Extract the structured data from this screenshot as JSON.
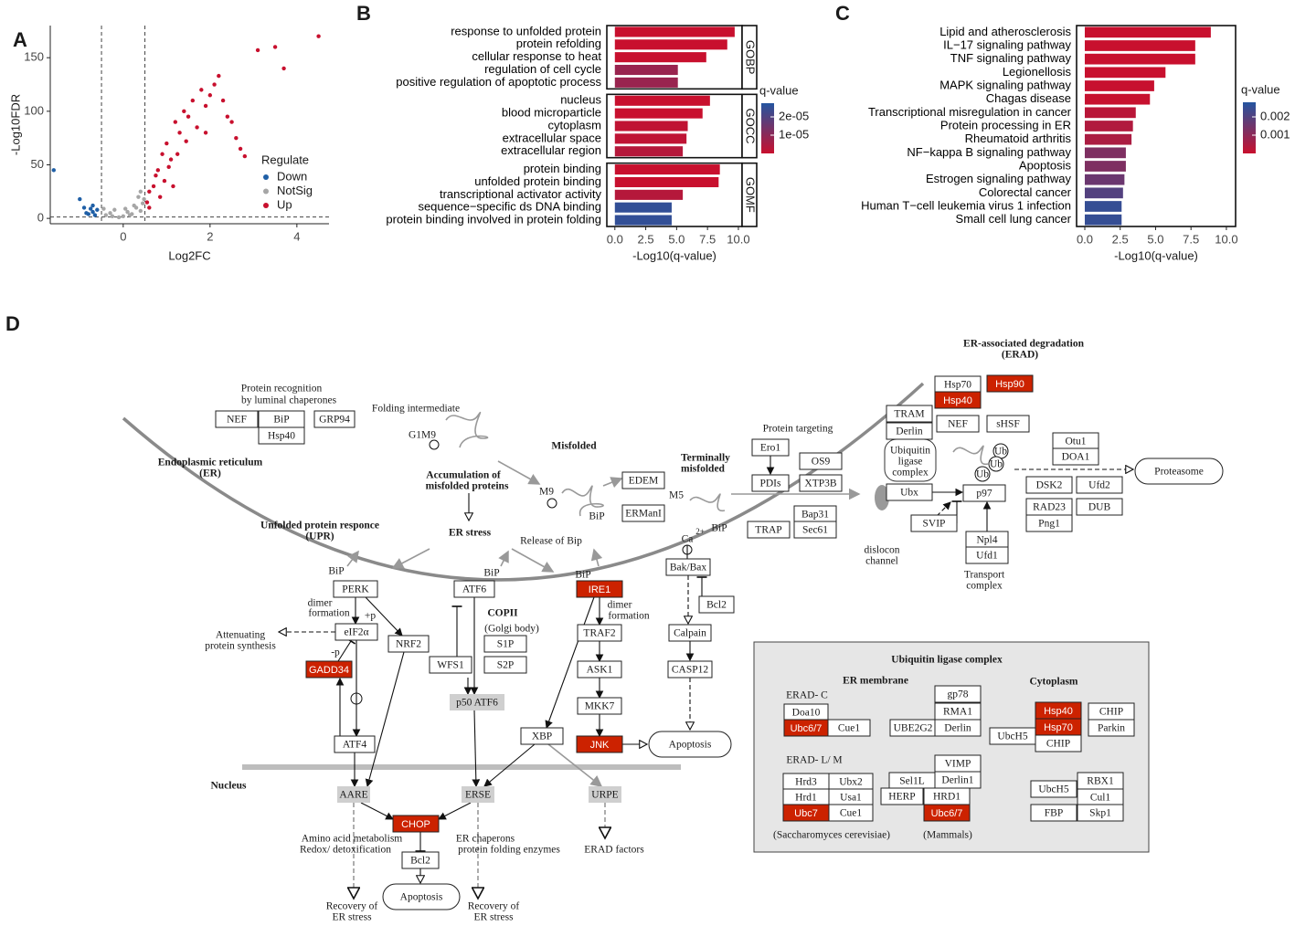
{
  "panel_labels": [
    "A",
    "B",
    "C",
    "D"
  ],
  "chart_data": [
    {
      "type": "scatter",
      "xlabel": "Log2FC",
      "ylabel": "-Log10FDR",
      "legend_title": "Regulate",
      "xlim": [
        -1.68,
        4.74
      ],
      "ylim": [
        -5,
        180
      ],
      "xticks": [
        0,
        2,
        4
      ],
      "yticks": [
        0,
        50,
        100,
        150
      ],
      "vlines": [
        -0.5,
        0.5
      ],
      "hline": 1.3,
      "series": [
        {
          "name": "Down",
          "color": "#1f5fa6",
          "x": [
            -1.6,
            -0.7,
            -0.75,
            -0.8,
            -0.65,
            -0.9,
            -1.0,
            -0.6,
            -0.85,
            -0.7
          ],
          "values": [
            45,
            6,
            9,
            4,
            3,
            10,
            18,
            8,
            5,
            12
          ]
        },
        {
          "name": "NotSig",
          "color": "#a6a6a6",
          "x": [
            -0.4,
            -0.3,
            -0.2,
            0,
            0.1,
            0.2,
            0.3,
            0.4,
            -0.1,
            0.45,
            0.35,
            0.25,
            -0.45,
            0.15,
            0.05,
            -0.25,
            0.4,
            0.48
          ],
          "values": [
            3,
            5,
            8,
            2,
            6,
            4,
            10,
            7,
            1,
            14,
            20,
            12,
            9,
            3,
            9,
            2,
            25,
            18
          ]
        },
        {
          "name": "Up",
          "color": "#c8102e",
          "x": [
            0.6,
            0.7,
            0.8,
            0.9,
            1.0,
            1.1,
            1.2,
            1.3,
            1.4,
            1.5,
            1.6,
            1.7,
            1.8,
            1.9,
            2.0,
            2.1,
            2.2,
            2.3,
            2.5,
            2.6,
            2.7,
            2.8,
            3.1,
            3.5,
            3.7,
            4.5,
            0.6,
            0.75,
            0.95,
            1.05,
            1.25,
            1.45,
            0.55,
            0.85,
            1.15,
            2.4,
            1.9
          ],
          "values": [
            10,
            30,
            45,
            60,
            70,
            55,
            90,
            80,
            100,
            95,
            110,
            85,
            120,
            105,
            115,
            125,
            133,
            110,
            90,
            75,
            65,
            58,
            157,
            160,
            140,
            170,
            25,
            40,
            35,
            48,
            60,
            72,
            15,
            20,
            30,
            95,
            80
          ]
        }
      ]
    },
    {
      "type": "bar",
      "xlabel": "-Log10(q-value)",
      "xlim": [
        -0.65,
        10.3
      ],
      "xticks": [
        {
          "value": 0,
          "label": "0.0"
        },
        2.5,
        {
          "value": 5,
          "label": "5.0"
        },
        7.5,
        {
          "value": 10,
          "label": "10.0"
        }
      ],
      "highlight_color": "#c8102e",
      "colorbar": {
        "title": "q-value",
        "lim": [
          0,
          2.75e-05
        ],
        "colors": [
          "#c8102e",
          "#2455a0"
        ],
        "ticks": [
          {
            "value": 2e-05,
            "label": "2e-05"
          },
          {
            "value": 1e-05,
            "label": "1e-05"
          }
        ]
      },
      "facets": [
        {
          "name": "GOBP",
          "categories": [
            "response to unfolded protein",
            "protein refolding",
            "cellular response to heat",
            "regulation of cell cycle",
            "positive regulation of apoptotic process"
          ],
          "values": [
            9.7,
            9.1,
            7.4,
            5.1,
            5.1
          ],
          "highlighted": [
            0,
            2
          ]
        },
        {
          "name": "GOCC",
          "categories": [
            "nucleus",
            "blood microparticle",
            "cytoplasm",
            "extracellular space",
            "extracellular region"
          ],
          "values": [
            7.7,
            7.1,
            5.9,
            5.8,
            5.5
          ],
          "highlighted": []
        },
        {
          "name": "GOMF",
          "categories": [
            "protein binding",
            "unfolded protein binding",
            "transcriptional activator activity",
            "sequence−specific ds DNA binding",
            "protein binding involved in protein folding"
          ],
          "values": [
            8.5,
            8.4,
            5.5,
            4.6,
            4.6
          ],
          "highlighted": [
            1,
            4
          ]
        }
      ]
    },
    {
      "type": "bar",
      "xlabel": "-Log10(q-value)",
      "xlim": [
        -0.58,
        10.65
      ],
      "xticks": [
        {
          "value": 0,
          "label": "0.0"
        },
        2.5,
        {
          "value": 5,
          "label": "5.0"
        },
        7.5,
        {
          "value": 10,
          "label": "10.0"
        }
      ],
      "highlight_color": "#c8102e",
      "colorbar": {
        "title": "q-value",
        "lim": [
          0,
          0.0028
        ],
        "colors": [
          "#c8102e",
          "#2455a0"
        ],
        "ticks": [
          0.002,
          0.001
        ]
      },
      "categories": [
        "Lipid and atherosclerosis",
        "IL−17 signaling pathway",
        "TNF signaling pathway",
        "Legionellosis",
        "MAPK signaling pathway",
        "Chagas disease",
        "Transcriptional misregulation in cancer",
        "Protein processing in ER",
        "Rheumatoid arthritis",
        "NF−kappa B signaling pathway",
        "Apoptosis",
        "Estrogen signaling pathway",
        "Colorectal cancer",
        "Human T−cell leukemia virus 1 infection",
        "Small cell lung cancer"
      ],
      "values": [
        8.9,
        7.8,
        7.8,
        5.7,
        4.9,
        4.6,
        3.6,
        3.4,
        3.3,
        2.9,
        2.9,
        2.8,
        2.7,
        2.6,
        2.6
      ],
      "highlighted": [
        4,
        7,
        9
      ]
    }
  ],
  "diagram": {
    "red": "#cc2200",
    "shade": "#cfcfcf",
    "highlighted": [
      45,
      56,
      66,
      73,
      88,
      89,
      122,
      128,
      129,
      141,
      146
    ],
    "shaded": [
      62,
      70,
      71,
      72
    ],
    "nodes": [
      "Protein recognition",
      "by luminal chaperones",
      "NEF",
      "BiP",
      "GRP94",
      "Hsp40",
      "Folding intermediate",
      "G1M9",
      "Endoplasmic reticulum",
      "(ER)",
      "Misfolded",
      "Accumulation of",
      "misfolded proteins",
      "ER stress",
      "M9",
      "EDEM",
      "ERManI",
      "BiP",
      "M5",
      "BiP",
      "Terminally",
      "misfolded",
      "Protein targeting",
      "Ero1",
      "PDIs",
      "OS9",
      "XTP3B",
      "Bap31",
      "TRAP",
      "Sec61",
      "Ca",
      "2+",
      "Bak/Bax",
      "Bcl2",
      "Calpain",
      "CASP12",
      "Apoptosis",
      "Unfolded protein responce",
      "(UPR)",
      "Release of Bip",
      "BiP",
      "BiP",
      "BiP",
      "PERK",
      "ATF6",
      "IRE1",
      "dimer",
      "formation",
      "dimer",
      "formation",
      "+p",
      "eIF2α",
      "NRF2",
      "Attenuating",
      "protein synthesis",
      "-p",
      "GADD34",
      "COPII",
      "(Golgi body)",
      "S1P",
      "S2P",
      "WFS1",
      "p50 ATF6",
      "TRAF2",
      "ASK1",
      "MKK7",
      "JNK",
      "XBP",
      "ATF4",
      "Nucleus",
      "AARE",
      "ERSE",
      "URPE",
      "CHOP",
      "Bcl2",
      "Amino acid  metabolism",
      "Redox/ detoxification",
      "ER chaperons",
      "protein folding enzymes",
      "ERAD factors",
      "Apoptosis",
      "Recovery of",
      "ER stress",
      "Recovery of",
      "ER stress",
      "ER-associated degradation",
      "(ERAD)",
      "Hsp70",
      "Hsp90",
      "Hsp40",
      "TRAM",
      "Derlin",
      "NEF",
      "sHSF",
      "Ubiquitin",
      "ligase",
      "complex",
      "Ubx",
      "p97",
      "SVIP",
      "Npl4",
      "Ufd1",
      "Transport",
      "complex",
      "dislocon",
      "channel",
      "Otu1",
      "DOA1",
      "DSK2",
      "Ufd2",
      "RAD23",
      "DUB",
      "Png1",
      "Proteasome",
      "Ub",
      "Ub",
      "Ub",
      "Ubiquitin ligase complex",
      "ER membrane",
      "Cytoplasm",
      "ERAD- C",
      "Doa10",
      "Ubc6/7",
      "Cue1",
      "gp78",
      "RMA1",
      "UBE2G2",
      "Derlin",
      "Hsp40",
      "Hsp70",
      "CHIP",
      "Parkin",
      "UbcH5",
      "CHIP",
      "ERAD- L/ M",
      "VIMP",
      "Derlin1",
      "Hrd3",
      "Ubx2",
      "Hrd1",
      "Usa1",
      "Ubc7",
      "Cue1",
      "Sel1L",
      "HERP",
      "HRD1",
      "Ubc6/7",
      "UbcH5",
      "RBX1",
      "Cul1",
      "FBP",
      "Skp1",
      "(Saccharomyces cerevisiae)",
      "(Mammals)"
    ]
  }
}
